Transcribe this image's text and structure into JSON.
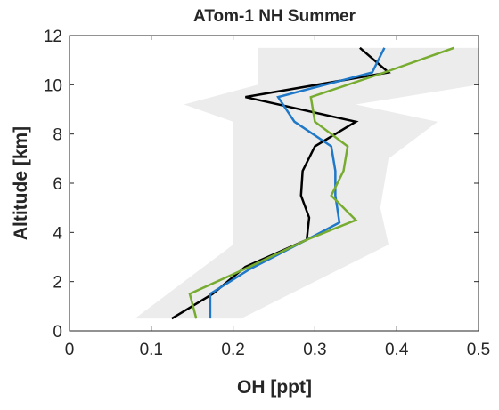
{
  "chart_data": {
    "type": "line",
    "title": "ATom-1 NH Summer",
    "xlabel": "OH [ppt]",
    "ylabel": "Altitude [km]",
    "xlim": [
      0,
      0.5
    ],
    "xticks": [
      0,
      0.1,
      0.2,
      0.3,
      0.4,
      0.5
    ],
    "ylim": [
      0,
      12
    ],
    "yticks": [
      0,
      2,
      4,
      6,
      8,
      10,
      12
    ],
    "band": {
      "color": "#ececec",
      "y": [
        0.5,
        2,
        3.5,
        5,
        7,
        8.5,
        9.2,
        10,
        11.5
      ],
      "lower": [
        0.08,
        0.14,
        0.2,
        0.2,
        0.2,
        0.2,
        0.14,
        0.23,
        0.23
      ],
      "upper": [
        0.21,
        0.3,
        0.39,
        0.38,
        0.39,
        0.45,
        0.35,
        0.5,
        0.5
      ]
    },
    "series": [
      {
        "color": "#000000",
        "x": [
          0.125,
          0.175,
          0.215,
          0.29,
          0.293,
          0.283,
          0.285,
          0.3,
          0.35,
          0.215,
          0.39,
          0.355
        ],
        "values": [
          0.5,
          1.5,
          2.6,
          3.7,
          4.6,
          5.5,
          6.5,
          7.5,
          8.5,
          9.5,
          10.5,
          11.5
        ]
      },
      {
        "color": "#1f78c8",
        "x": [
          0.172,
          0.172,
          0.22,
          0.29,
          0.33,
          0.325,
          0.325,
          0.32,
          0.275,
          0.255,
          0.37,
          0.385
        ],
        "values": [
          0.5,
          1.5,
          2.5,
          3.7,
          4.4,
          5.5,
          6.5,
          7.5,
          8.5,
          9.5,
          10.5,
          11.5
        ]
      },
      {
        "color": "#77ac30",
        "x": [
          0.155,
          0.147,
          0.22,
          0.29,
          0.35,
          0.32,
          0.335,
          0.34,
          0.3,
          0.295,
          0.385,
          0.47
        ],
        "values": [
          0.5,
          1.5,
          2.6,
          3.7,
          4.5,
          5.5,
          6.5,
          7.5,
          8.5,
          9.5,
          10.5,
          11.5
        ]
      }
    ]
  }
}
